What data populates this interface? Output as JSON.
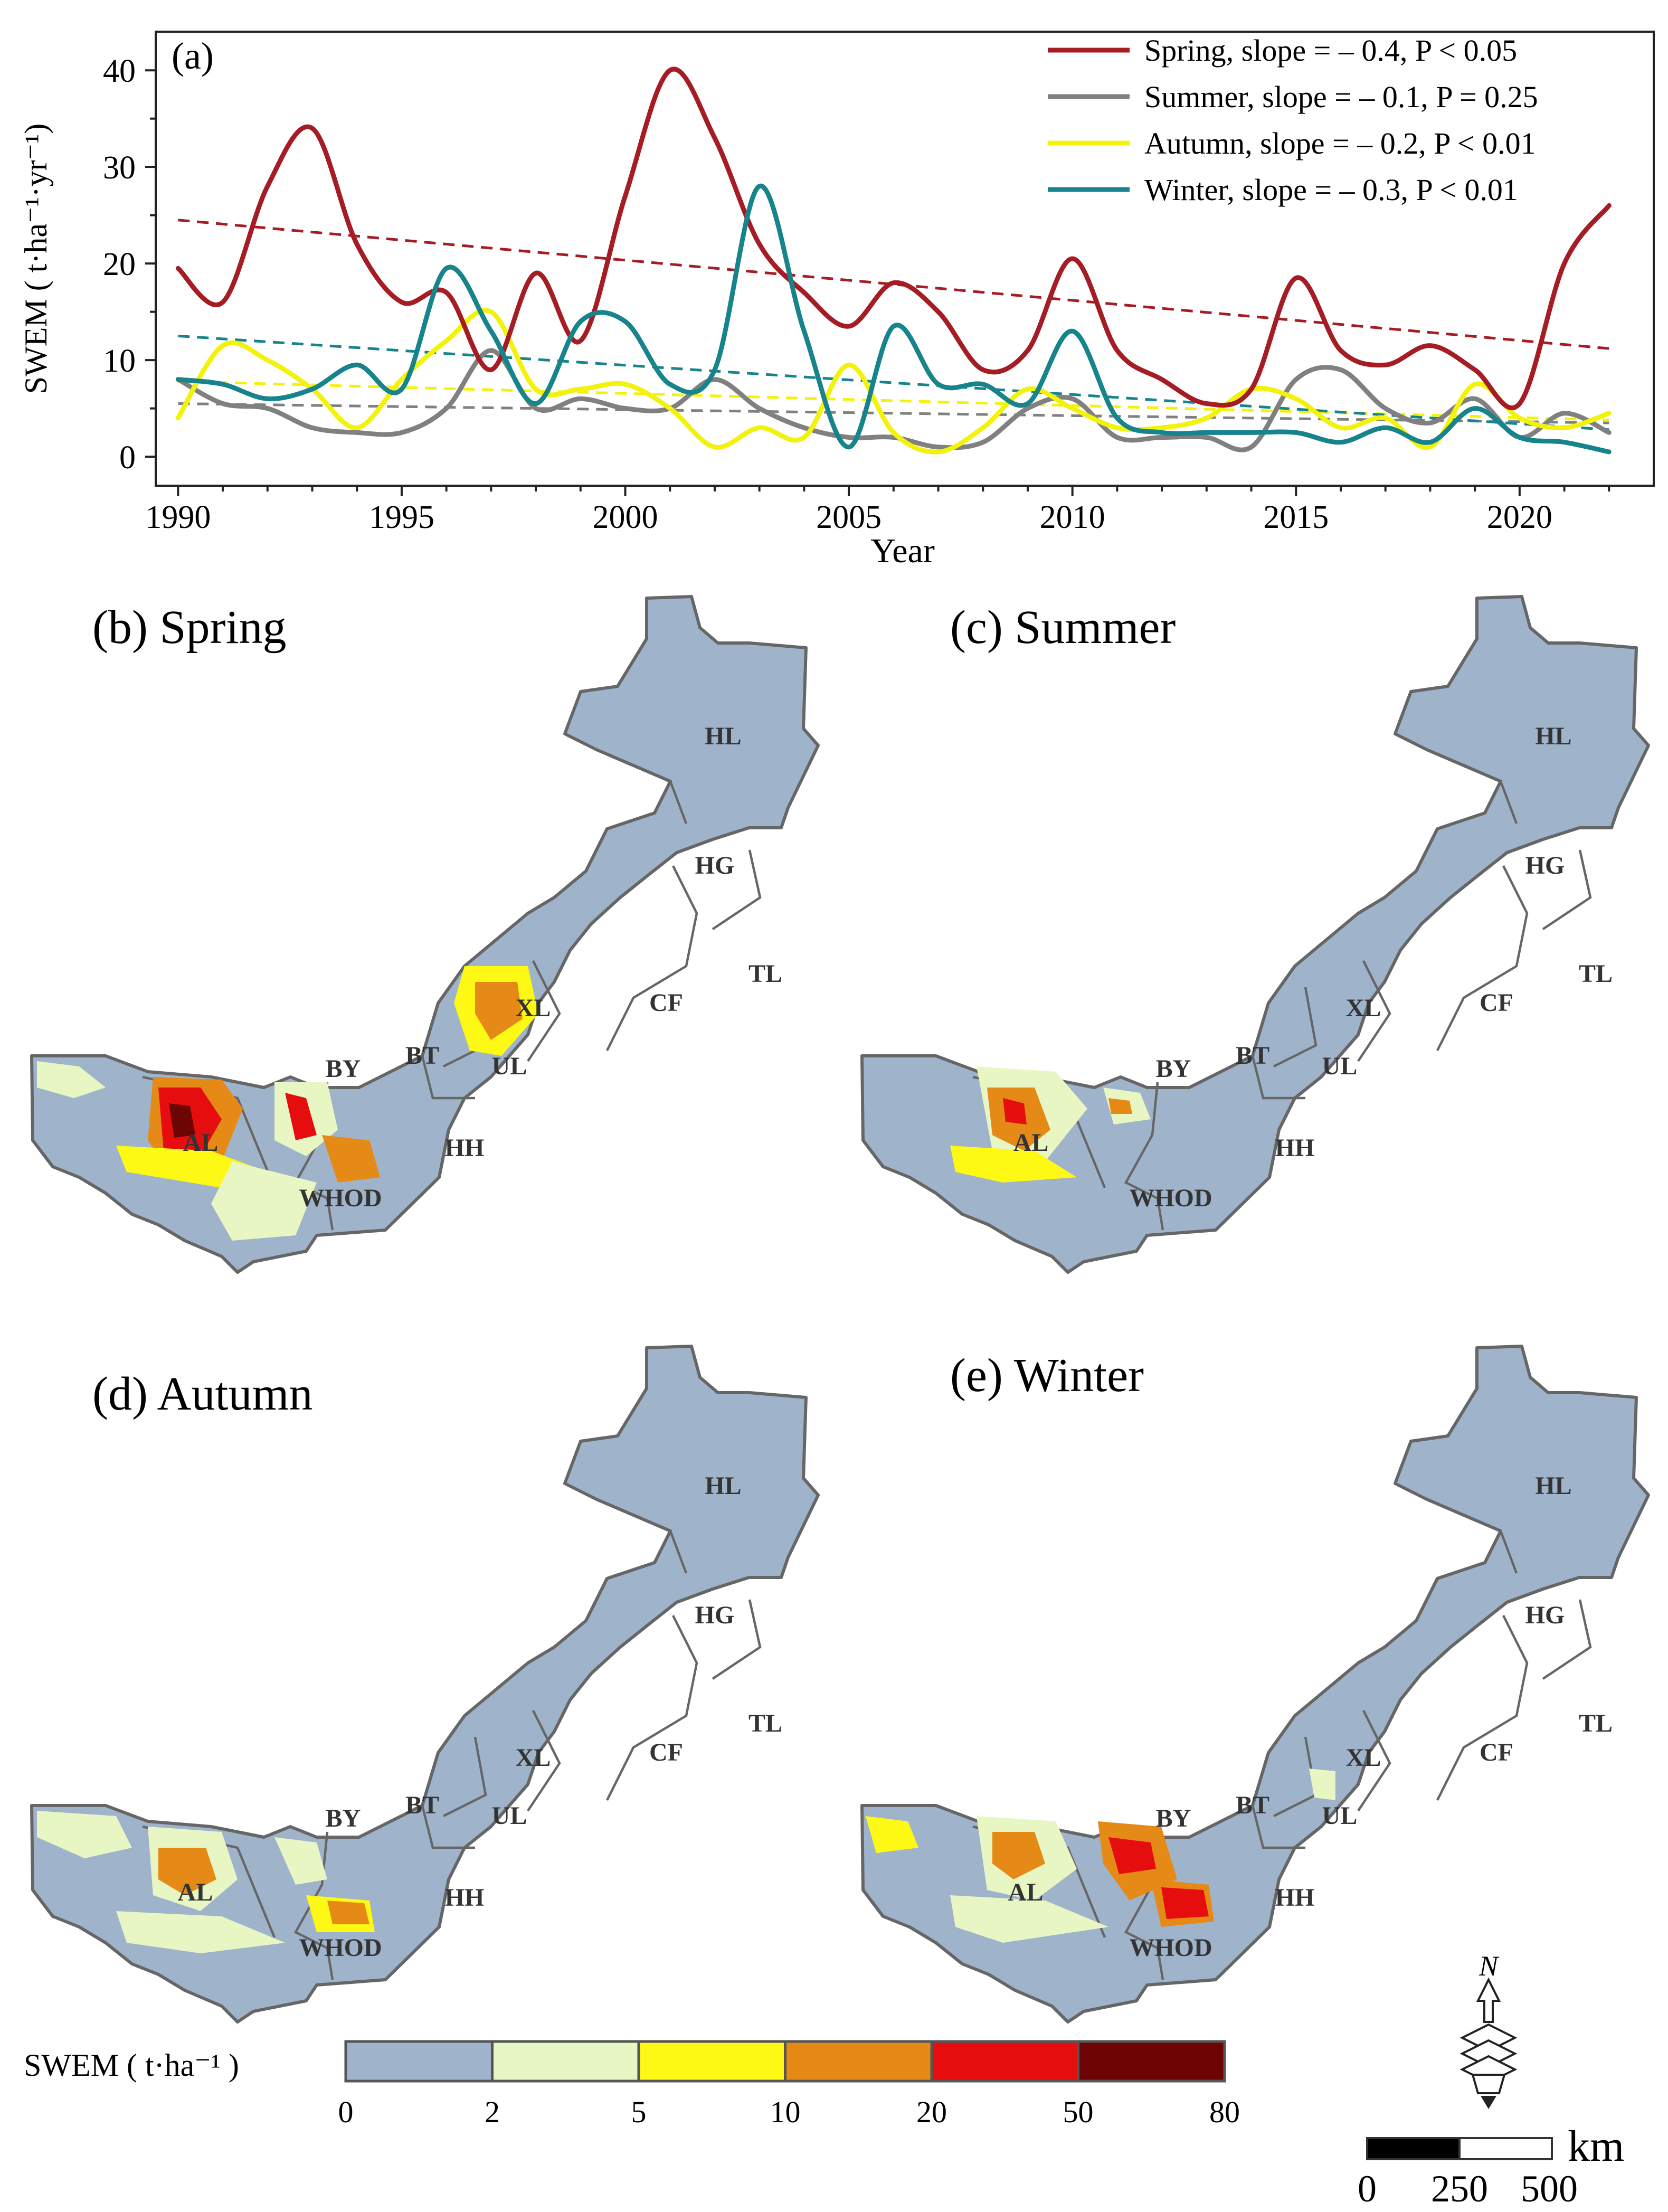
{
  "chart_data": [
    {
      "type": "line",
      "panel": "(a)",
      "title": "",
      "xlabel": "Year",
      "ylabel": "SWEM ( t·ha⁻¹·yr⁻¹)",
      "xlim": [
        1989.5,
        2023.0
      ],
      "ylim": [
        -3,
        44
      ],
      "xticks": [
        1990,
        1995,
        2000,
        2005,
        2010,
        2015,
        2020
      ],
      "yticks": [
        0,
        10,
        20,
        30,
        40
      ],
      "legend_position": "top-right",
      "x": [
        1990,
        1991,
        1992,
        1993,
        1994,
        1995,
        1996,
        1997,
        1998,
        1999,
        2000,
        2001,
        2002,
        2003,
        2004,
        2005,
        2006,
        2007,
        2008,
        2009,
        2010,
        2011,
        2012,
        2013,
        2014,
        2015,
        2016,
        2017,
        2018,
        2019,
        2020,
        2021,
        2022
      ],
      "series": [
        {
          "name": "Spring",
          "label": "Spring, slope = – 0.4, P < 0.05",
          "color": "#a61c24",
          "values": [
            19.5,
            16,
            28,
            34,
            22,
            16,
            17,
            9,
            19,
            12,
            27,
            40,
            33,
            22,
            17,
            13.5,
            18,
            15,
            9,
            11,
            20.5,
            11,
            8,
            5.5,
            7,
            18.5,
            11,
            9.5,
            11.5,
            9,
            5.5,
            20,
            26
          ],
          "trend": [
            24.5,
            11.2
          ]
        },
        {
          "name": "Summer",
          "label": "Summer, slope = – 0.1, P = 0.25",
          "color": "#808080",
          "values": [
            8,
            5.5,
            5,
            3,
            2.5,
            2.5,
            5,
            11,
            5,
            6,
            5,
            5,
            8,
            5,
            3,
            2,
            2,
            1,
            1.5,
            5,
            6,
            2,
            2,
            2,
            1,
            8,
            9,
            5,
            3.5,
            6,
            2,
            4.5,
            2.5
          ],
          "trend": [
            5.5,
            3.5
          ]
        },
        {
          "name": "Autumn",
          "label": "Autumn, slope = – 0.2, P < 0.01",
          "color": "#f2f20a",
          "values": [
            4,
            11.5,
            10,
            7,
            3,
            8,
            12,
            15,
            7,
            7,
            7.5,
            5,
            1,
            3,
            2,
            9.5,
            2.5,
            0.5,
            3,
            7,
            5,
            3,
            3,
            4,
            7,
            6,
            3,
            4,
            1,
            7.5,
            4,
            3,
            4.5
          ],
          "trend": [
            7.8,
            3.8
          ]
        },
        {
          "name": "Winter",
          "label": "Winter, slope = – 0.3, P < 0.01",
          "color": "#17848c",
          "values": [
            8,
            7.5,
            6,
            7,
            9.5,
            7,
            19.5,
            13,
            5.5,
            14,
            14,
            7.5,
            9,
            28,
            13,
            1,
            13.5,
            7.5,
            7.5,
            5.5,
            13,
            4,
            2.5,
            2.5,
            2.5,
            2.5,
            1.5,
            3,
            1.5,
            5,
            2,
            1.5,
            0.5
          ],
          "trend": [
            12.5,
            2.8
          ]
        }
      ]
    },
    {
      "type": "map",
      "panels": [
        {
          "id": "b",
          "title": "(b) Spring"
        },
        {
          "id": "c",
          "title": "(c) Summer"
        },
        {
          "id": "d",
          "title": "(d) Autumn"
        },
        {
          "id": "e",
          "title": "(e) Winter"
        }
      ],
      "regions": [
        "HL",
        "HG",
        "TL",
        "CF",
        "XL",
        "UL",
        "BT",
        "HH",
        "BY",
        "AL",
        "WHOD"
      ],
      "legend": {
        "label": "SWEM ( t·ha⁻¹ )",
        "classes": [
          {
            "range": "0-2",
            "color": "#9fb4cb"
          },
          {
            "range": "2-5",
            "color": "#e8f6c4"
          },
          {
            "range": "5-10",
            "color": "#fdf915"
          },
          {
            "range": "10-20",
            "color": "#e58a16"
          },
          {
            "range": "20-50",
            "color": "#e50d0d"
          },
          {
            "range": "50-80",
            "color": "#6e0505"
          }
        ],
        "ticks": [
          "0",
          "2",
          "5",
          "10",
          "20",
          "50",
          "80"
        ]
      },
      "scale_bar": {
        "unit": "km",
        "ticks": [
          "0",
          "250",
          "500"
        ]
      },
      "north_label": "N"
    }
  ]
}
